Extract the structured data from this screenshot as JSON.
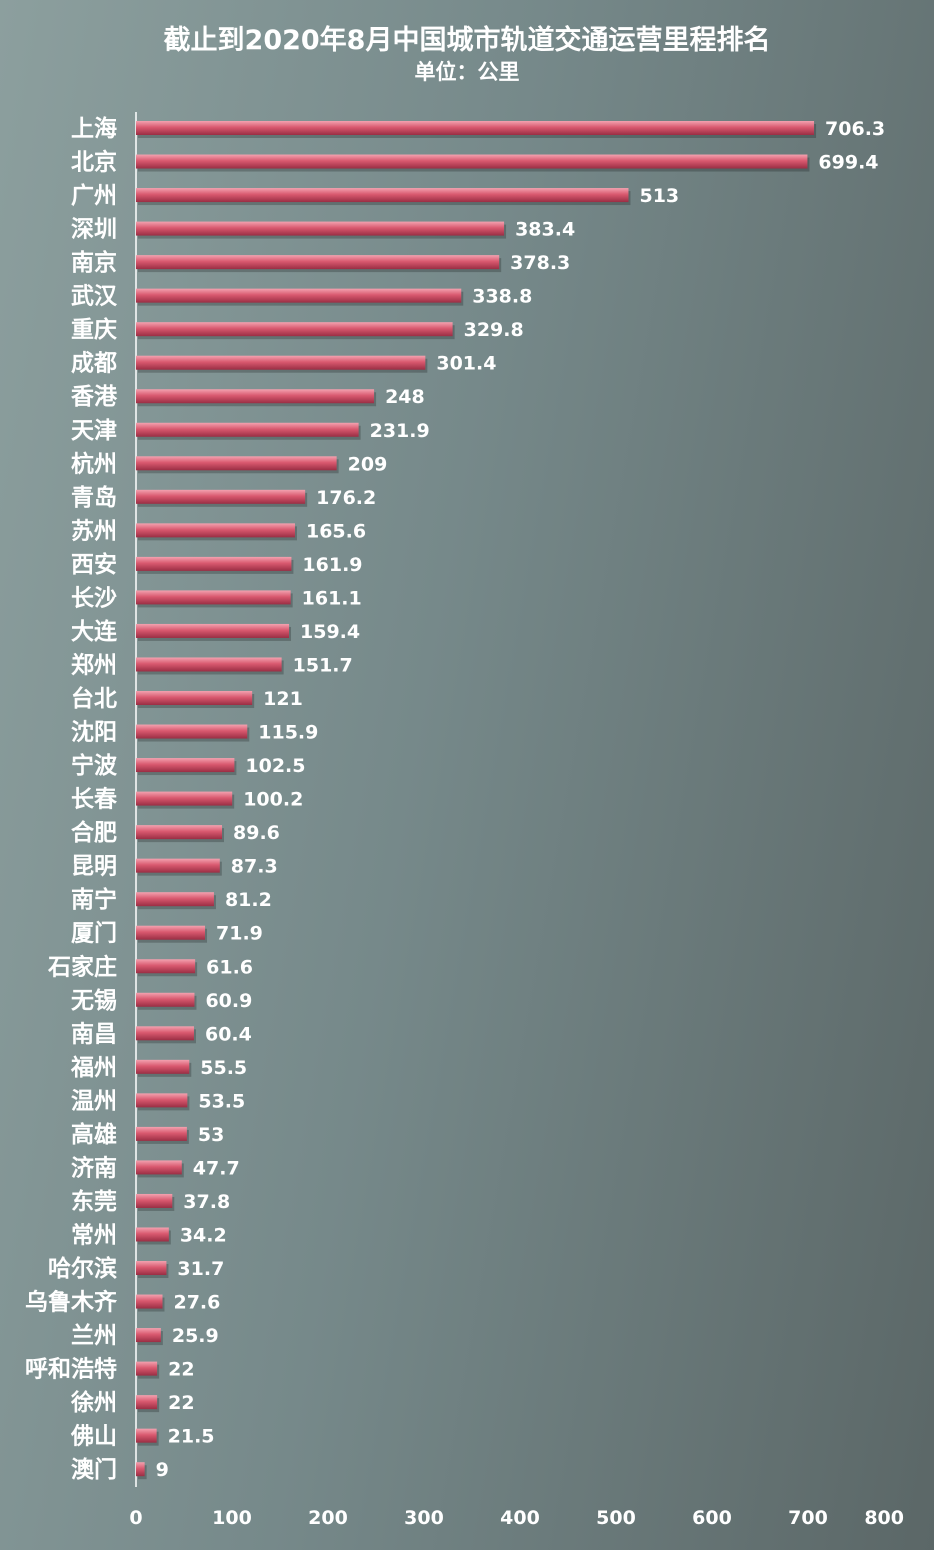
{
  "chart_data": {
    "type": "bar",
    "orientation": "horizontal",
    "title": "截止到2020年8月中国城市轨道交通运营里程排名",
    "subtitle": "单位：公里",
    "categories": [
      "上海",
      "北京",
      "广州",
      "深圳",
      "南京",
      "武汉",
      "重庆",
      "成都",
      "香港",
      "天津",
      "杭州",
      "青岛",
      "苏州",
      "西安",
      "长沙",
      "大连",
      "郑州",
      "台北",
      "沈阳",
      "宁波",
      "长春",
      "合肥",
      "昆明",
      "南宁",
      "厦门",
      "石家庄",
      "无锡",
      "南昌",
      "福州",
      "温州",
      "高雄",
      "济南",
      "东莞",
      "常州",
      "哈尔滨",
      "乌鲁木齐",
      "兰州",
      "呼和浩特",
      "徐州",
      "佛山",
      "澳门"
    ],
    "values": [
      706.3,
      699.4,
      513,
      383.4,
      378.3,
      338.8,
      329.8,
      301.4,
      248,
      231.9,
      209,
      176.2,
      165.6,
      161.9,
      161.1,
      159.4,
      151.7,
      121,
      115.9,
      102.5,
      100.2,
      89.6,
      87.3,
      81.2,
      71.9,
      61.6,
      60.9,
      60.4,
      55.5,
      53.5,
      53,
      47.7,
      37.8,
      34.2,
      31.7,
      27.6,
      25.9,
      22,
      22,
      21.5,
      9
    ],
    "value_labels": [
      "706.3",
      "699.4",
      "513",
      "383.4",
      "378.3",
      "338.8",
      "329.8",
      "301.4",
      "248",
      "231.9",
      "209",
      "176.2",
      "165.6",
      "161.9",
      "161.1",
      "159.4",
      "151.7",
      "121",
      "115.9",
      "102.5",
      "100.2",
      "89.6",
      "87.3",
      "81.2",
      "71.9",
      "61.6",
      "60.9",
      "60.4",
      "55.5",
      "53.5",
      "53",
      "47.7",
      "37.8",
      "34.2",
      "31.7",
      "27.6",
      "25.9",
      "22",
      "22",
      "21.5",
      "9"
    ],
    "xlim": [
      0,
      800
    ],
    "xticks": [
      "0",
      "100",
      "200",
      "300",
      "400",
      "500",
      "600",
      "700",
      "800"
    ],
    "grid": false,
    "legend": "none",
    "colors": {
      "bar": "#d9596f",
      "bar_highlight": "#f3a2b0",
      "bar_shadow": "#9a2e44",
      "text": "#ffffff",
      "axis": "#ffffff",
      "background_start": "#8c9f9e",
      "background_end": "#5b6767"
    }
  }
}
